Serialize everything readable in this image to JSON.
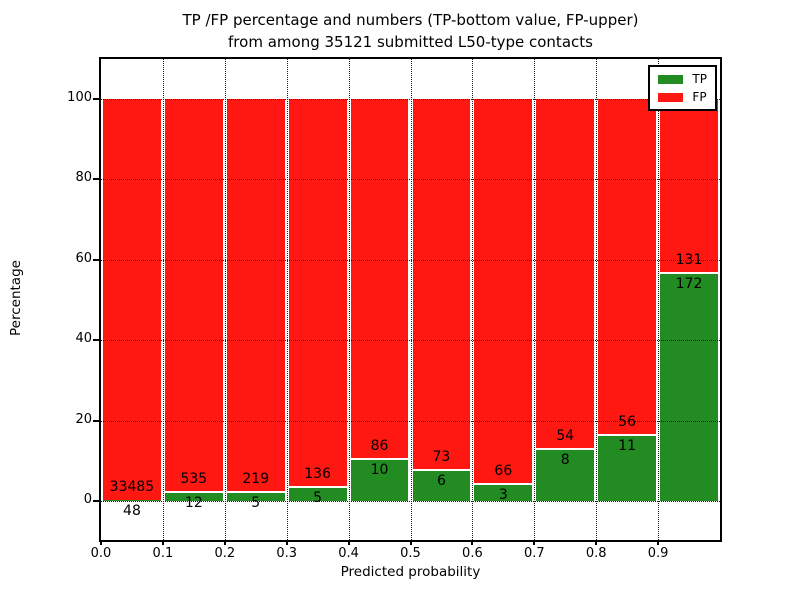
{
  "title": {
    "line1": "TP /FP percentage and numbers (TP-bottom value, FP-upper)",
    "line2": "from among 35121 submitted L50-type contacts"
  },
  "axes": {
    "xlabel": "Predicted probability",
    "ylabel": "Percentage",
    "x_tick_labels": [
      "0.0",
      "0.1",
      "0.2",
      "0.3",
      "0.4",
      "0.5",
      "0.6",
      "0.7",
      "0.8",
      "0.9"
    ],
    "y_tick_labels": [
      "0",
      "20",
      "40",
      "60",
      "80",
      "100"
    ]
  },
  "legend": [
    {
      "label": "TP",
      "color": "#228b22"
    },
    {
      "label": "FP",
      "color": "#ff1712"
    }
  ],
  "colors": {
    "tp": "#228b22",
    "fp": "#ff1712",
    "grid": "#1a1a1a",
    "background": "#ffffff",
    "text": "#000000"
  },
  "chart_data": {
    "type": "bar",
    "stacked": true,
    "normalized_to_percent": true,
    "title": "TP /FP percentage and numbers (TP-bottom value, FP-upper) from among 35121 submitted L50-type contacts",
    "total_submitted": 35121,
    "xlabel": "Predicted probability",
    "ylabel": "Percentage",
    "xlim": [
      0.0,
      1.0
    ],
    "ylim": [
      -10,
      110
    ],
    "x_ticks": [
      0.0,
      0.1,
      0.2,
      0.3,
      0.4,
      0.5,
      0.6,
      0.7,
      0.8,
      0.9
    ],
    "y_ticks": [
      0,
      20,
      40,
      60,
      80,
      100
    ],
    "grid": true,
    "legend_position": "upper right",
    "bin_width": 0.1,
    "bins": [
      {
        "range": [
          0.0,
          0.1
        ],
        "tp": 48,
        "fp": 33485
      },
      {
        "range": [
          0.1,
          0.2
        ],
        "tp": 12,
        "fp": 535
      },
      {
        "range": [
          0.2,
          0.3
        ],
        "tp": 5,
        "fp": 219
      },
      {
        "range": [
          0.3,
          0.4
        ],
        "tp": 5,
        "fp": 136
      },
      {
        "range": [
          0.4,
          0.5
        ],
        "tp": 10,
        "fp": 86
      },
      {
        "range": [
          0.5,
          0.6
        ],
        "tp": 6,
        "fp": 73
      },
      {
        "range": [
          0.6,
          0.7
        ],
        "tp": 3,
        "fp": 66
      },
      {
        "range": [
          0.7,
          0.8
        ],
        "tp": 8,
        "fp": 54
      },
      {
        "range": [
          0.8,
          0.9
        ],
        "tp": 11,
        "fp": 56
      },
      {
        "range": [
          0.9,
          1.0
        ],
        "tp": 172,
        "fp": 131
      }
    ],
    "series": [
      {
        "name": "TP",
        "values": [
          48,
          12,
          5,
          5,
          10,
          6,
          3,
          8,
          11,
          172
        ]
      },
      {
        "name": "FP",
        "values": [
          33485,
          535,
          219,
          136,
          86,
          73,
          66,
          54,
          56,
          131
        ]
      }
    ],
    "note": "Each bar normalized to 100%; green TP segment height = tp/(tp+fp)*100"
  }
}
